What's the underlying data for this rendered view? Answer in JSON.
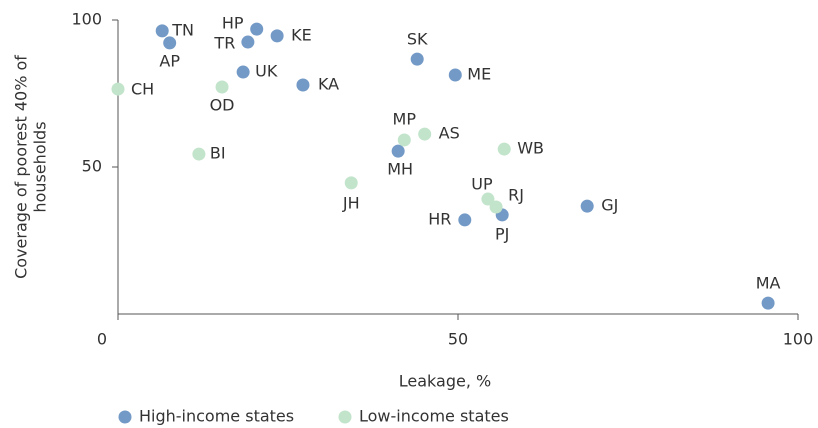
{
  "chart_data": {
    "type": "scatter",
    "x_label": "Leakage, %",
    "y_label": [
      "Coverage of poorest 40% of",
      "households"
    ],
    "xlim": [
      0,
      100
    ],
    "xticks": [
      0,
      50,
      100
    ],
    "ylim": [
      0,
      100
    ],
    "yticks": [
      50,
      100
    ],
    "legend": "bottom-left",
    "series": [
      {
        "name": "High-income states",
        "color": "#7399c6",
        "labels": [
          "TN",
          "AP",
          "HP",
          "TR",
          "KE",
          "UK",
          "KA",
          "SK",
          "ME",
          "MH",
          "HR",
          "PJ",
          "GJ",
          "MA"
        ],
        "x": [
          6.5,
          7.6,
          20.4,
          19.1,
          23.4,
          18.4,
          27.2,
          44.0,
          49.6,
          41.2,
          51.0,
          56.5,
          69.0,
          95.6
        ],
        "values": [
          96.3,
          92.2,
          96.9,
          92.5,
          94.6,
          82.3,
          77.9,
          86.7,
          81.3,
          55.4,
          32.0,
          33.7,
          36.7,
          3.7
        ]
      },
      {
        "name": "Low-income states",
        "color": "#c2e4cb",
        "labels": [
          "CH",
          "OD",
          "BI",
          "MP",
          "AS",
          "WB",
          "JH",
          "UP",
          "RJ"
        ],
        "x": [
          0,
          15.3,
          11.9,
          42.1,
          45.1,
          56.8,
          34.3,
          54.4,
          55.6
        ],
        "values": [
          76.5,
          77.2,
          54.4,
          59.2,
          61.2,
          56.1,
          44.6,
          39.1,
          36.4
        ]
      }
    ]
  }
}
